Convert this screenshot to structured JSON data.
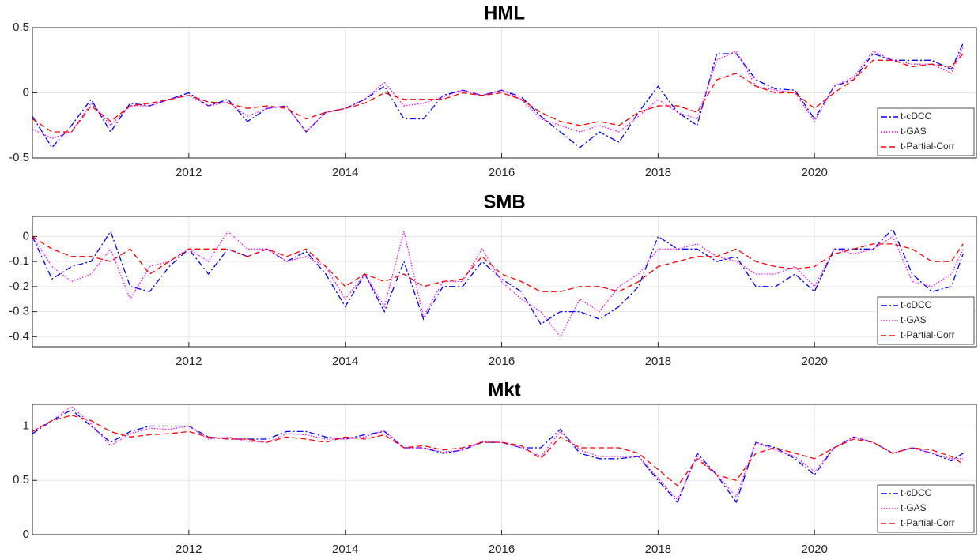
{
  "chart_data": [
    {
      "type": "line",
      "title": "HML",
      "xlim": [
        2010,
        2022.07
      ],
      "xticks": [
        2012,
        2014,
        2016,
        2018,
        2020
      ],
      "ylim": [
        -0.5,
        0.5
      ],
      "yticks": [
        -0.5,
        0,
        0.5
      ],
      "grid": true,
      "legend": "lower right",
      "x": [
        2010,
        2010.25,
        2010.5,
        2010.75,
        2011,
        2011.25,
        2011.5,
        2011.75,
        2012,
        2012.25,
        2012.5,
        2012.75,
        2013,
        2013.25,
        2013.5,
        2013.75,
        2014,
        2014.25,
        2014.5,
        2014.75,
        2015,
        2015.25,
        2015.5,
        2015.75,
        2016,
        2016.25,
        2016.5,
        2016.75,
        2017,
        2017.25,
        2017.5,
        2017.75,
        2018,
        2018.25,
        2018.5,
        2018.75,
        2019,
        2019.25,
        2019.5,
        2019.75,
        2020,
        2020.25,
        2020.5,
        2020.75,
        2021,
        2021.25,
        2021.5,
        2021.75,
        2021.9
      ],
      "series": [
        {
          "name": "t-cDCC",
          "color": "#0000ff",
          "style": "dashdot",
          "values": [
            -0.18,
            -0.42,
            -0.25,
            -0.05,
            -0.3,
            -0.08,
            -0.1,
            -0.05,
            0,
            -0.1,
            -0.05,
            -0.22,
            -0.12,
            -0.1,
            -0.3,
            -0.15,
            -0.12,
            -0.05,
            0.05,
            -0.2,
            -0.2,
            -0.02,
            0.02,
            -0.02,
            0.02,
            -0.03,
            -0.18,
            -0.3,
            -0.42,
            -0.3,
            -0.38,
            -0.15,
            0.05,
            -0.15,
            -0.25,
            0.3,
            0.3,
            0.1,
            0.03,
            0.02,
            -0.2,
            0.05,
            0.1,
            0.3,
            0.25,
            0.25,
            0.25,
            0.18,
            0.38
          ]
        },
        {
          "name": "t-GAS",
          "color": "#ff00ff",
          "style": "dotted",
          "values": [
            -0.28,
            -0.35,
            -0.3,
            -0.08,
            -0.25,
            -0.1,
            -0.1,
            -0.05,
            -0.02,
            -0.1,
            -0.07,
            -0.18,
            -0.12,
            -0.1,
            -0.3,
            -0.15,
            -0.12,
            -0.05,
            0.08,
            -0.1,
            -0.08,
            -0.03,
            0.02,
            -0.02,
            0.02,
            -0.05,
            -0.2,
            -0.25,
            -0.3,
            -0.25,
            -0.3,
            -0.18,
            -0.05,
            -0.15,
            -0.2,
            0.25,
            0.32,
            0.05,
            0.02,
            0,
            -0.22,
            0.05,
            0.12,
            0.32,
            0.25,
            0.22,
            0.22,
            0.15,
            0.35
          ]
        },
        {
          "name": "t-Partial-Corr",
          "color": "#ff0000",
          "style": "dashed",
          "values": [
            -0.2,
            -0.3,
            -0.3,
            -0.1,
            -0.22,
            -0.1,
            -0.08,
            -0.05,
            -0.02,
            -0.07,
            -0.08,
            -0.12,
            -0.1,
            -0.12,
            -0.2,
            -0.15,
            -0.12,
            -0.08,
            0,
            -0.05,
            -0.05,
            -0.05,
            0,
            -0.02,
            0,
            -0.05,
            -0.15,
            -0.22,
            -0.25,
            -0.22,
            -0.25,
            -0.15,
            -0.1,
            -0.1,
            -0.15,
            0.1,
            0.15,
            0.05,
            0,
            0,
            -0.12,
            0,
            0.1,
            0.25,
            0.25,
            0.2,
            0.22,
            0.2,
            0.3
          ]
        }
      ]
    },
    {
      "type": "line",
      "title": "SMB",
      "xlim": [
        2010,
        2022.07
      ],
      "xticks": [
        2012,
        2014,
        2016,
        2018,
        2020
      ],
      "ylim": [
        -0.44,
        0.08
      ],
      "yticks": [
        -0.4,
        -0.3,
        -0.2,
        -0.1,
        0
      ],
      "grid": true,
      "legend": "lower right",
      "x": [
        2010,
        2010.25,
        2010.5,
        2010.75,
        2011,
        2011.25,
        2011.5,
        2011.75,
        2012,
        2012.25,
        2012.5,
        2012.75,
        2013,
        2013.25,
        2013.5,
        2013.75,
        2014,
        2014.25,
        2014.5,
        2014.75,
        2015,
        2015.25,
        2015.5,
        2015.75,
        2016,
        2016.25,
        2016.5,
        2016.75,
        2017,
        2017.25,
        2017.5,
        2017.75,
        2018,
        2018.25,
        2018.5,
        2018.75,
        2019,
        2019.25,
        2019.5,
        2019.75,
        2020,
        2020.25,
        2020.5,
        2020.75,
        2021,
        2021.25,
        2021.5,
        2021.75,
        2021.9
      ],
      "series": [
        {
          "name": "t-cDCC",
          "color": "#0000ff",
          "style": "dashdot",
          "values": [
            0,
            -0.17,
            -0.12,
            -0.1,
            0.02,
            -0.2,
            -0.22,
            -0.12,
            -0.05,
            -0.15,
            -0.05,
            -0.08,
            -0.05,
            -0.1,
            -0.06,
            -0.15,
            -0.28,
            -0.15,
            -0.3,
            -0.1,
            -0.33,
            -0.2,
            -0.2,
            -0.1,
            -0.17,
            -0.22,
            -0.35,
            -0.3,
            -0.3,
            -0.33,
            -0.28,
            -0.2,
            0,
            -0.05,
            -0.05,
            -0.1,
            -0.08,
            -0.2,
            -0.2,
            -0.15,
            -0.22,
            -0.05,
            -0.05,
            -0.05,
            0.03,
            -0.15,
            -0.22,
            -0.2,
            -0.07
          ]
        },
        {
          "name": "t-GAS",
          "color": "#ff00ff",
          "style": "dotted",
          "values": [
            0,
            -0.12,
            -0.18,
            -0.15,
            -0.05,
            -0.25,
            -0.12,
            -0.1,
            -0.05,
            -0.1,
            0.02,
            -0.05,
            -0.05,
            -0.1,
            -0.08,
            -0.12,
            -0.25,
            -0.15,
            -0.28,
            0.02,
            -0.32,
            -0.18,
            -0.18,
            -0.05,
            -0.18,
            -0.25,
            -0.3,
            -0.4,
            -0.25,
            -0.3,
            -0.2,
            -0.15,
            -0.05,
            -0.05,
            -0.03,
            -0.08,
            -0.1,
            -0.15,
            -0.15,
            -0.12,
            -0.2,
            -0.05,
            -0.07,
            -0.05,
            0,
            -0.18,
            -0.2,
            -0.15,
            -0.05
          ]
        },
        {
          "name": "t-Partial-Corr",
          "color": "#ff0000",
          "style": "dashed",
          "values": [
            0,
            -0.05,
            -0.08,
            -0.08,
            -0.1,
            -0.05,
            -0.15,
            -0.1,
            -0.05,
            -0.05,
            -0.05,
            -0.08,
            -0.05,
            -0.08,
            -0.05,
            -0.12,
            -0.2,
            -0.15,
            -0.18,
            -0.15,
            -0.2,
            -0.18,
            -0.17,
            -0.08,
            -0.15,
            -0.18,
            -0.22,
            -0.22,
            -0.2,
            -0.2,
            -0.22,
            -0.18,
            -0.12,
            -0.1,
            -0.08,
            -0.08,
            -0.05,
            -0.1,
            -0.12,
            -0.13,
            -0.12,
            -0.07,
            -0.05,
            -0.03,
            -0.03,
            -0.05,
            -0.1,
            -0.1,
            -0.03
          ]
        }
      ]
    },
    {
      "type": "line",
      "title": "Mkt",
      "xlim": [
        2010,
        2022.07
      ],
      "xticks": [
        2012,
        2014,
        2016,
        2018,
        2020
      ],
      "ylim": [
        0,
        1.2
      ],
      "yticks": [
        0,
        0.5,
        1
      ],
      "grid": true,
      "legend": "lower right",
      "x": [
        2010,
        2010.25,
        2010.5,
        2010.75,
        2011,
        2011.25,
        2011.5,
        2011.75,
        2012,
        2012.25,
        2012.5,
        2012.75,
        2013,
        2013.25,
        2013.5,
        2013.75,
        2014,
        2014.25,
        2014.5,
        2014.75,
        2015,
        2015.25,
        2015.5,
        2015.75,
        2016,
        2016.25,
        2016.5,
        2016.75,
        2017,
        2017.25,
        2017.5,
        2017.75,
        2018,
        2018.25,
        2018.5,
        2018.75,
        2019,
        2019.25,
        2019.5,
        2019.75,
        2020,
        2020.25,
        2020.5,
        2020.75,
        2021,
        2021.25,
        2021.5,
        2021.75,
        2021.9
      ],
      "series": [
        {
          "name": "t-cDCC",
          "color": "#0000ff",
          "style": "dashdot",
          "values": [
            0.93,
            1.05,
            1.15,
            1,
            0.85,
            0.95,
            1,
            1,
            1,
            0.9,
            0.88,
            0.88,
            0.88,
            0.95,
            0.95,
            0.9,
            0.88,
            0.92,
            0.95,
            0.8,
            0.8,
            0.75,
            0.78,
            0.85,
            0.85,
            0.8,
            0.8,
            0.97,
            0.75,
            0.7,
            0.7,
            0.72,
            0.5,
            0.3,
            0.75,
            0.55,
            0.3,
            0.85,
            0.8,
            0.7,
            0.55,
            0.8,
            0.9,
            0.85,
            0.75,
            0.8,
            0.75,
            0.68,
            0.75
          ]
        },
        {
          "name": "t-GAS",
          "color": "#ff00ff",
          "style": "dotted",
          "values": [
            0.95,
            1.05,
            1.18,
            1.02,
            0.82,
            0.93,
            0.98,
            0.97,
            1,
            0.88,
            0.9,
            0.86,
            0.85,
            0.93,
            0.92,
            0.88,
            0.88,
            0.9,
            0.96,
            0.8,
            0.8,
            0.76,
            0.78,
            0.86,
            0.85,
            0.8,
            0.72,
            0.95,
            0.78,
            0.72,
            0.72,
            0.72,
            0.52,
            0.32,
            0.72,
            0.55,
            0.35,
            0.85,
            0.78,
            0.72,
            0.58,
            0.8,
            0.9,
            0.85,
            0.75,
            0.8,
            0.75,
            0.7,
            0.7
          ]
        },
        {
          "name": "t-Partial-Corr",
          "color": "#ff0000",
          "style": "dashed",
          "values": [
            0.95,
            1.05,
            1.1,
            1.05,
            0.95,
            0.9,
            0.92,
            0.93,
            0.95,
            0.9,
            0.88,
            0.88,
            0.85,
            0.9,
            0.88,
            0.85,
            0.9,
            0.88,
            0.92,
            0.8,
            0.82,
            0.78,
            0.8,
            0.85,
            0.85,
            0.82,
            0.7,
            0.9,
            0.8,
            0.8,
            0.8,
            0.75,
            0.6,
            0.45,
            0.7,
            0.55,
            0.5,
            0.75,
            0.8,
            0.75,
            0.7,
            0.8,
            0.88,
            0.85,
            0.75,
            0.8,
            0.78,
            0.72,
            0.65
          ]
        }
      ]
    }
  ]
}
